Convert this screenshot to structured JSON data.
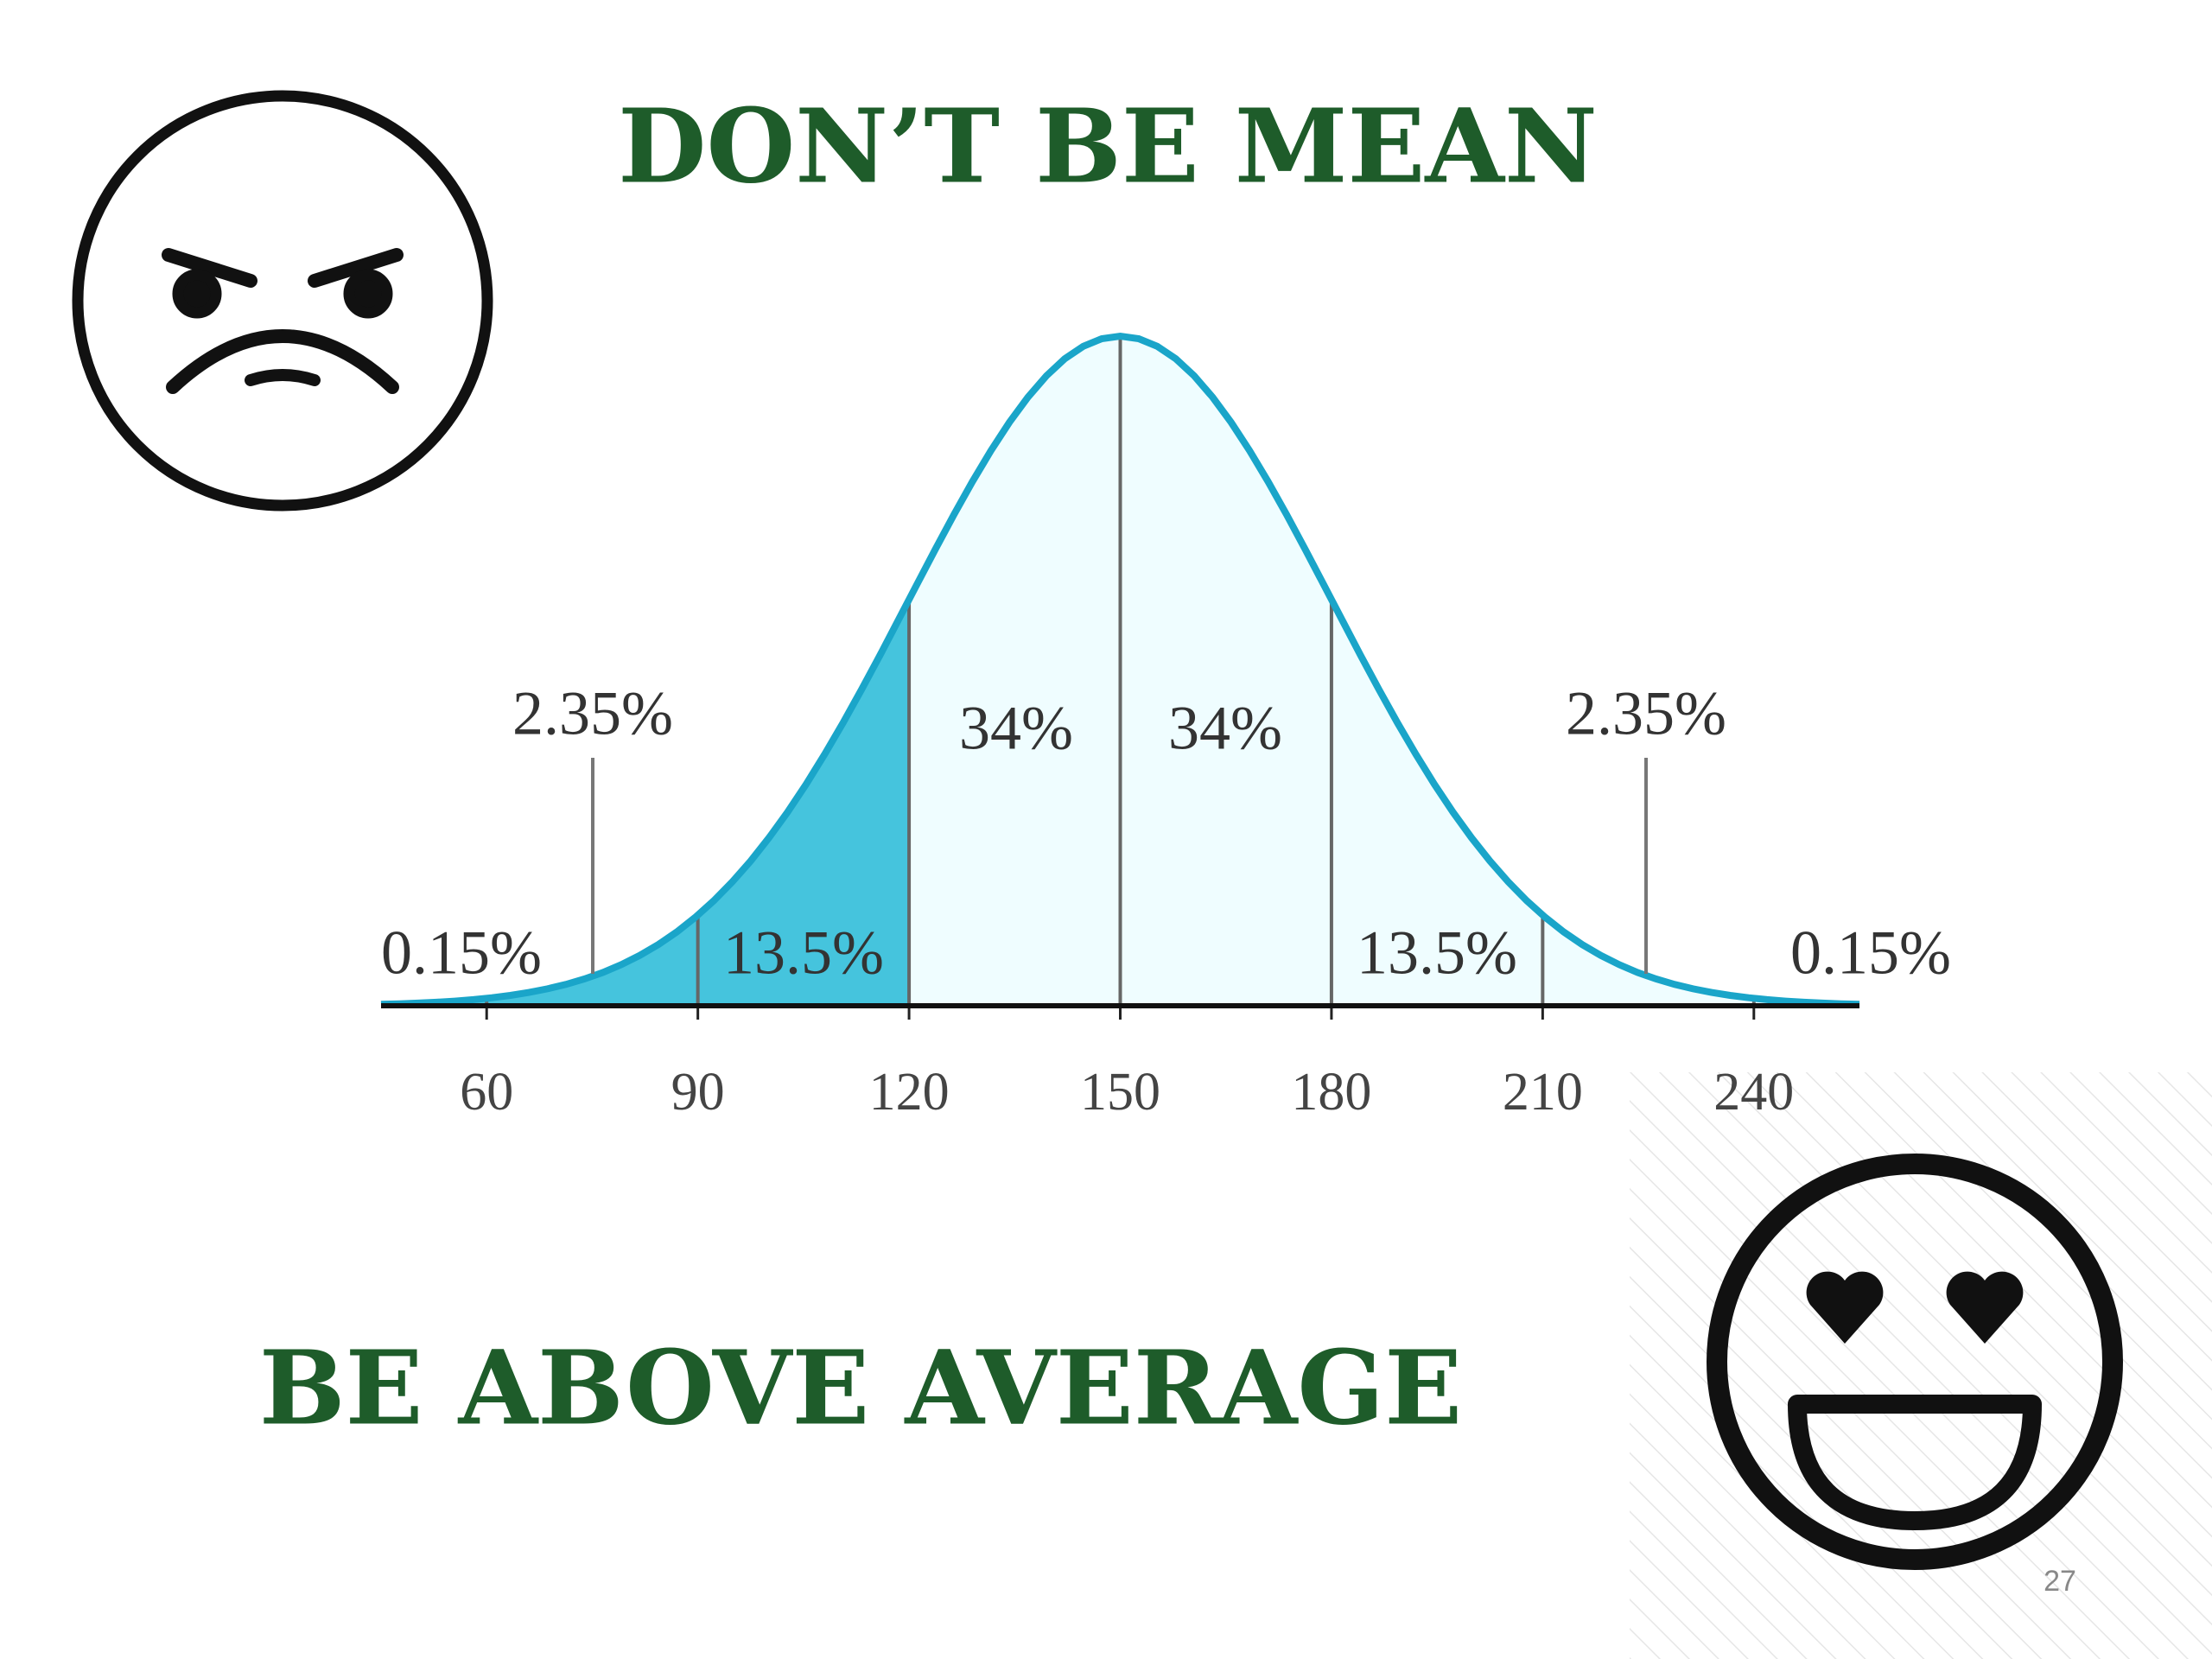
{
  "title": "DON’T BE MEAN",
  "subtitle": "BE ABOVE AVERAGE",
  "page_number": "27",
  "chart_data": {
    "type": "normal",
    "values": [
      0.15,
      2.35,
      13.5,
      34,
      34,
      13.5,
      2.35,
      0.15
    ],
    "value_labels": [
      "0.15%",
      "2.35%",
      "13.5%",
      "34%",
      "34%",
      "13.5%",
      "2.35%",
      "0.15%"
    ],
    "colors": [
      "#45c4dd",
      "#45c4dd",
      "#45c4dd",
      "#effdff",
      "#effdff",
      "#effdff",
      "#effdff",
      "#effdff"
    ],
    "line_color": "#1aa5c9",
    "xlim": [
      45,
      255
    ],
    "xticks": [
      60,
      90,
      120,
      150,
      180,
      210,
      240
    ]
  }
}
